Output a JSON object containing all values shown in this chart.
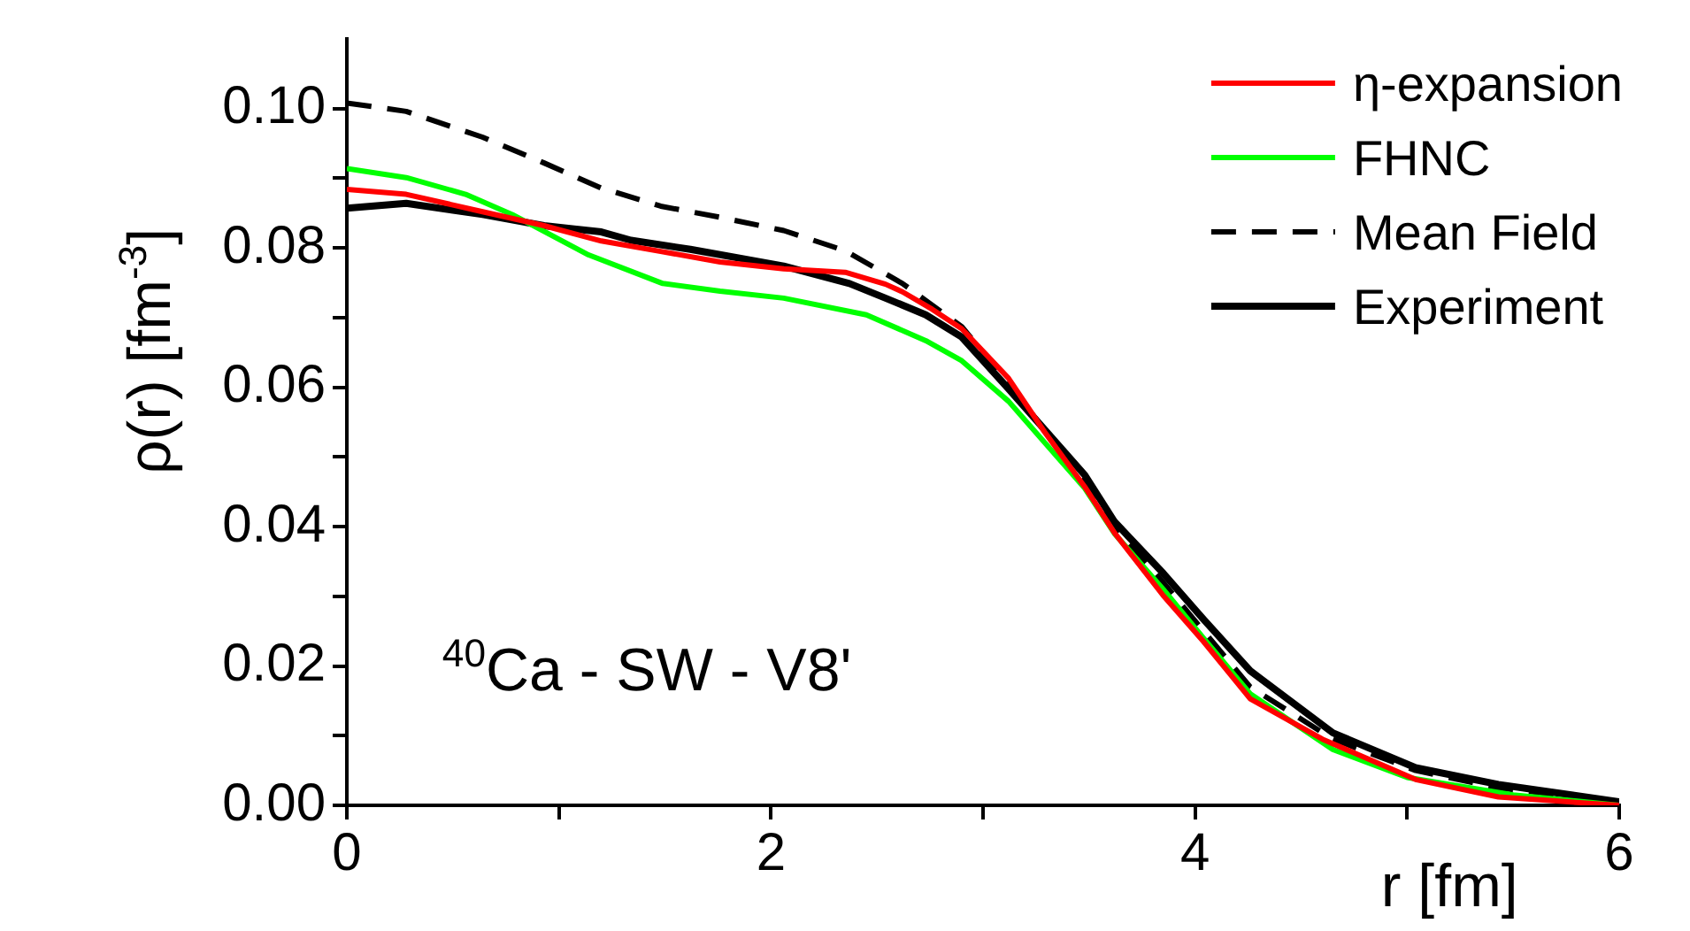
{
  "chart_data": {
    "type": "line",
    "xlabel": "r [fm]",
    "ylabel": "ρ(r) [fm$^{-3}$]",
    "annotations": [
      "$^{40}$Ca - SW - V8'"
    ],
    "xlim": [
      0,
      6
    ],
    "xticks": [
      0,
      {
        "value": 1,
        "label": null
      },
      2,
      {
        "value": 3,
        "label": null
      },
      4,
      {
        "value": 5,
        "label": null
      },
      6
    ],
    "ylim": [
      0,
      0.11
    ],
    "yticks": [
      {
        "value": 0,
        "label": "0.00"
      },
      {
        "value": 0.01,
        "label": null
      },
      {
        "value": 0.02,
        "label": "0.02"
      },
      {
        "value": 0.03,
        "label": null
      },
      {
        "value": 0.04,
        "label": "0.04"
      },
      {
        "value": 0.05,
        "label": null
      },
      {
        "value": 0.06,
        "label": "0.06"
      },
      {
        "value": 0.07,
        "label": null
      },
      {
        "value": 0.08,
        "label": "0.08"
      },
      {
        "value": 0.09,
        "label": null
      },
      {
        "value": 0.1,
        "label": "0.10"
      }
    ],
    "grid": false,
    "legend": "top right",
    "marker": "none",
    "series": [
      {
        "name": "η-expansion",
        "color": "#ff0000",
        "line_style": "solid",
        "x": [
          0,
          0.28,
          0.64,
          0.93,
          1.2,
          1.48,
          1.76,
          2.06,
          2.35,
          2.54,
          2.62,
          2.76,
          2.9,
          3.12,
          3.29,
          3.48,
          3.62,
          3.85,
          4.04,
          4.26,
          4.6,
          5.04,
          5.43,
          6
        ],
        "values": [
          0.0884,
          0.0877,
          0.0852,
          0.0832,
          0.081,
          0.0795,
          0.078,
          0.077,
          0.0765,
          0.0748,
          0.0737,
          0.0712,
          0.0684,
          0.0613,
          0.0536,
          0.0457,
          0.0391,
          0.0301,
          0.0235,
          0.0153,
          0.0095,
          0.0037,
          0.0012,
          0.0
        ]
      },
      {
        "name": "FHNC",
        "color": "#00ff00",
        "line_style": "solid",
        "x": [
          0,
          0.28,
          0.56,
          0.78,
          1.14,
          1.49,
          1.76,
          2.06,
          2.45,
          2.73,
          2.9,
          3.12,
          3.48,
          3.62,
          3.85,
          4.04,
          4.26,
          4.65,
          5.0,
          5.5,
          6
        ],
        "values": [
          0.0914,
          0.0901,
          0.0877,
          0.0848,
          0.079,
          0.0749,
          0.0738,
          0.0728,
          0.0704,
          0.0667,
          0.0638,
          0.058,
          0.0455,
          0.039,
          0.031,
          0.024,
          0.016,
          0.008,
          0.004,
          0.0015,
          0.0
        ]
      },
      {
        "name": "Mean Field",
        "color": "#000000",
        "line_style": "dashed",
        "x": [
          0,
          0.28,
          0.64,
          0.93,
          1.2,
          1.48,
          1.76,
          2.06,
          2.35,
          2.62,
          2.9,
          3.12,
          3.29,
          3.48,
          3.62,
          3.85,
          4.04,
          4.26,
          4.65,
          5.04,
          5.43,
          6
        ],
        "values": [
          0.1008,
          0.0996,
          0.0959,
          0.0922,
          0.0886,
          0.086,
          0.0844,
          0.0825,
          0.0796,
          0.0749,
          0.0687,
          0.0605,
          0.0539,
          0.0465,
          0.04,
          0.032,
          0.025,
          0.017,
          0.0095,
          0.005,
          0.0025,
          0.0005
        ]
      },
      {
        "name": "Experiment",
        "color": "#000000",
        "line_style": "solid",
        "x": [
          0,
          0.28,
          0.64,
          0.93,
          1.2,
          1.34,
          1.62,
          2.06,
          2.37,
          2.54,
          2.73,
          2.9,
          3.12,
          3.48,
          3.62,
          3.85,
          4.04,
          4.26,
          4.65,
          5.04,
          5.43,
          6
        ],
        "values": [
          0.0857,
          0.0864,
          0.0848,
          0.0832,
          0.0823,
          0.0811,
          0.0798,
          0.0774,
          0.0749,
          0.0728,
          0.0704,
          0.0672,
          0.0598,
          0.0474,
          0.0407,
          0.0333,
          0.0267,
          0.0193,
          0.0104,
          0.0054,
          0.003,
          0.0005
        ]
      }
    ]
  }
}
